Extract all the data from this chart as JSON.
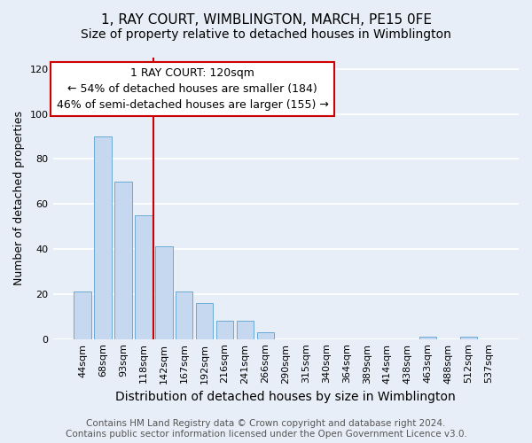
{
  "title": "1, RAY COURT, WIMBLINGTON, MARCH, PE15 0FE",
  "subtitle": "Size of property relative to detached houses in Wimblington",
  "xlabel": "Distribution of detached houses by size in Wimblington",
  "ylabel": "Number of detached properties",
  "categories": [
    "44sqm",
    "68sqm",
    "93sqm",
    "118sqm",
    "142sqm",
    "167sqm",
    "192sqm",
    "216sqm",
    "241sqm",
    "266sqm",
    "290sqm",
    "315sqm",
    "340sqm",
    "364sqm",
    "389sqm",
    "414sqm",
    "438sqm",
    "463sqm",
    "488sqm",
    "512sqm",
    "537sqm"
  ],
  "values": [
    21,
    90,
    70,
    55,
    41,
    21,
    16,
    8,
    8,
    3,
    0,
    0,
    0,
    0,
    0,
    0,
    0,
    1,
    0,
    1,
    0
  ],
  "bar_color": "#c5d8f0",
  "bar_edgecolor": "#6aaad4",
  "property_value_index": 3,
  "property_line_color": "#cc0000",
  "annotation_line1": "1 RAY COURT: 120sqm",
  "annotation_line2": "← 54% of detached houses are smaller (184)",
  "annotation_line3": "46% of semi-detached houses are larger (155) →",
  "annotation_box_edgecolor": "#cc0000",
  "ylim": [
    0,
    125
  ],
  "yticks": [
    0,
    20,
    40,
    60,
    80,
    100,
    120
  ],
  "footer_text": "Contains HM Land Registry data © Crown copyright and database right 2024.\nContains public sector information licensed under the Open Government Licence v3.0.",
  "background_color": "#e8eef7",
  "plot_background_color": "#e8eef7",
  "title_fontsize": 11,
  "subtitle_fontsize": 10,
  "xlabel_fontsize": 10,
  "ylabel_fontsize": 9,
  "tick_fontsize": 8,
  "annotation_fontsize": 9,
  "footer_fontsize": 7.5,
  "grid_color": "#ffffff",
  "grid_linewidth": 1.2
}
